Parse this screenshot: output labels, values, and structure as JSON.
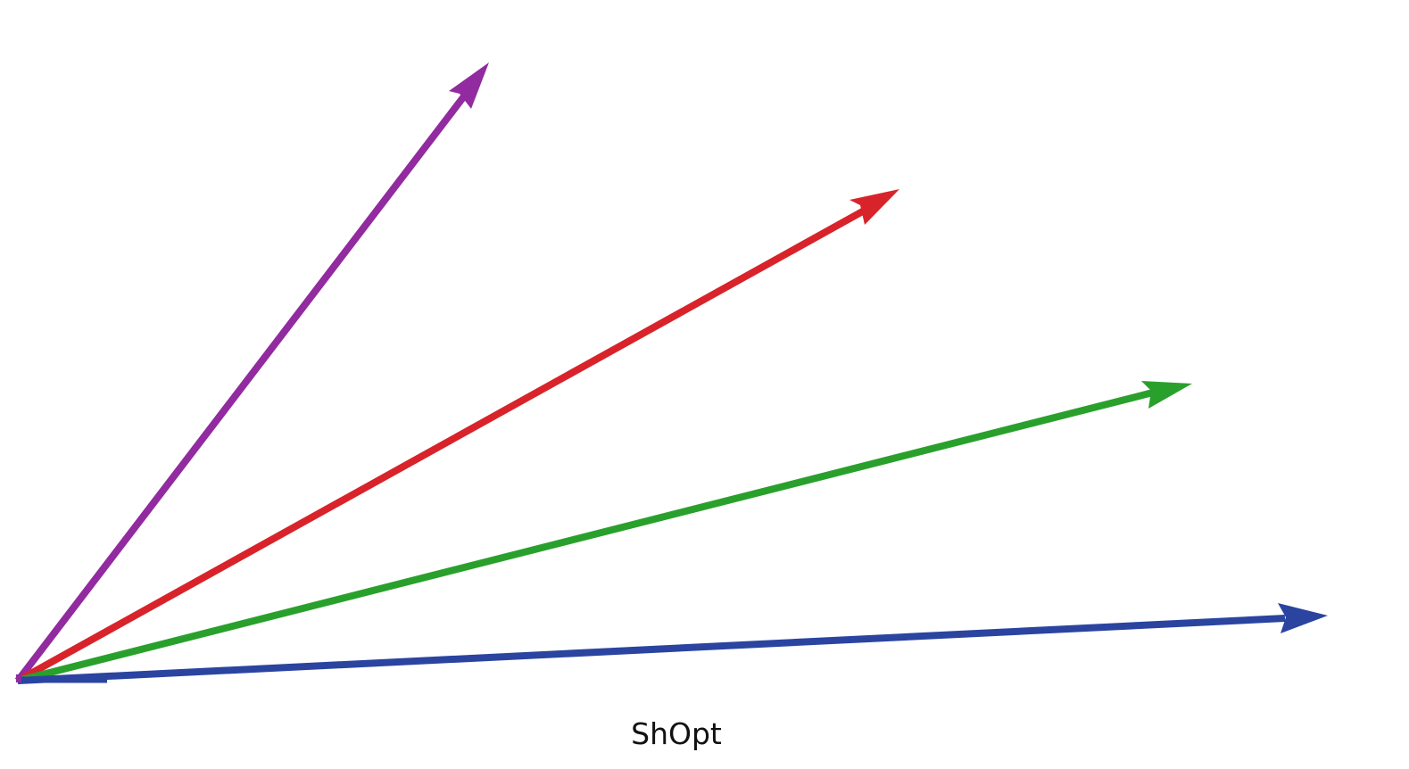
{
  "caption": "ShOpt",
  "arrows": [
    {
      "id": "arrow-purple",
      "color": "#922aa0"
    },
    {
      "id": "arrow-red",
      "color": "#d8232a"
    },
    {
      "id": "arrow-green",
      "color": "#2aa02c"
    },
    {
      "id": "arrow-blue",
      "color": "#2a44a0"
    }
  ]
}
